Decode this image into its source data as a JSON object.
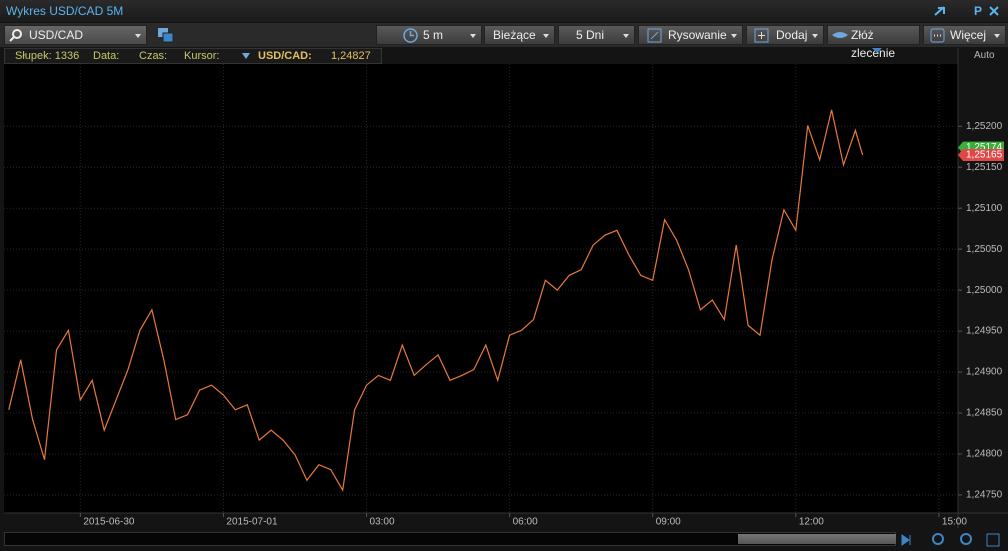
{
  "window": {
    "title": "Wykres USD/CAD 5M",
    "pin": "P"
  },
  "toolbar": {
    "symbol": "USD/CAD",
    "interval": "5 m",
    "mode": "Bieżące",
    "range": "5 Dni",
    "draw": "Rysowanie",
    "add": "Dodaj",
    "order": "Złóż zlecenie",
    "more": "Więcej"
  },
  "info": {
    "bar": "Słupek: 1336",
    "date": "Data:",
    "time": "Czas:",
    "cursor": "Kursor:",
    "pair": "USD/CAD:",
    "value": "1,24827"
  },
  "axis_mode": "Auto",
  "chart_data": {
    "type": "line",
    "x": [
      -4.5,
      -4.25,
      -4,
      -3.75,
      -3.5,
      -3.25,
      -3,
      -2.75,
      -2.5,
      -2.25,
      -2,
      -1.75,
      -1.5,
      -1.25,
      -1,
      -0.75,
      -0.5,
      -0.25,
      0,
      0.25,
      0.5,
      0.75,
      1,
      1.25,
      1.5,
      1.75,
      2,
      2.25,
      2.5,
      2.75,
      3,
      3.25,
      3.5,
      3.75,
      4,
      4.25,
      4.5,
      4.75,
      5,
      5.25,
      5.5,
      5.75,
      6,
      6.25,
      6.5,
      6.75,
      7,
      7.25,
      7.5,
      7.75,
      8,
      8.25,
      8.5,
      8.75,
      9,
      9.25,
      9.5,
      9.75,
      10,
      10.25,
      10.5,
      10.75,
      11,
      11.25,
      11.5,
      11.75,
      12,
      12.25,
      12.5,
      12.75,
      13,
      13.25,
      13.4
    ],
    "series": [
      {
        "name": "USD/CAD",
        "color": "#e8793a",
        "values": [
          1.24854,
          1.24915,
          1.24842,
          1.24793,
          1.24927,
          1.24951,
          1.24866,
          1.2489,
          1.24829,
          1.24866,
          1.24903,
          1.24951,
          1.24976,
          1.24915,
          1.24842,
          1.24848,
          1.24878,
          1.24884,
          1.24872,
          1.24854,
          1.2486,
          1.24817,
          1.24829,
          1.24817,
          1.24799,
          1.24768,
          1.24787,
          1.24781,
          1.24756,
          1.24854,
          1.24884,
          1.24896,
          1.2489,
          1.24933,
          1.24896,
          1.24909,
          1.24921,
          1.2489,
          1.24896,
          1.24903,
          1.24933,
          1.2489,
          1.24945,
          1.24951,
          1.24964,
          1.25012,
          1.25,
          1.25018,
          1.25025,
          1.25055,
          1.25067,
          1.25073,
          1.25043,
          1.25018,
          1.25012,
          1.25086,
          1.25061,
          1.25025,
          1.24976,
          1.24988,
          1.24964,
          1.25055,
          1.24957,
          1.24945,
          1.25037,
          1.25098,
          1.25073,
          1.25201,
          1.25159,
          1.2522,
          1.25153,
          1.25195,
          1.25165
        ]
      }
    ],
    "xlim": [
      -4.6,
      15.4
    ],
    "xticks": [
      {
        "value": -3,
        "label": "2015-06-30"
      },
      {
        "value": 0,
        "label": "2015-07-01"
      },
      {
        "value": 3,
        "label": "03:00"
      },
      {
        "value": 6,
        "label": "06:00"
      },
      {
        "value": 9,
        "label": "09:00"
      },
      {
        "value": 12,
        "label": "12:00"
      },
      {
        "value": 15,
        "label": "15:00"
      }
    ],
    "ylim": [
      1.24728,
      1.25276
    ],
    "yticks": [
      {
        "value": 1.2475,
        "label": "1,24750"
      },
      {
        "value": 1.248,
        "label": "1,24800"
      },
      {
        "value": 1.2485,
        "label": "1,24850"
      },
      {
        "value": 1.249,
        "label": "1,24900"
      },
      {
        "value": 1.2495,
        "label": "1,24950"
      },
      {
        "value": 1.25,
        "label": "1,25000"
      },
      {
        "value": 1.2505,
        "label": "1,25050"
      },
      {
        "value": 1.251,
        "label": "1,25100"
      },
      {
        "value": 1.2515,
        "label": "1,25150"
      },
      {
        "value": 1.252,
        "label": "1,25200"
      }
    ],
    "grid": true,
    "markers": [
      {
        "value": 1.25174,
        "label": "1,25174",
        "color": "#3cae3c"
      },
      {
        "value": 1.25165,
        "label": "1,25165",
        "color": "#e04848"
      }
    ]
  }
}
